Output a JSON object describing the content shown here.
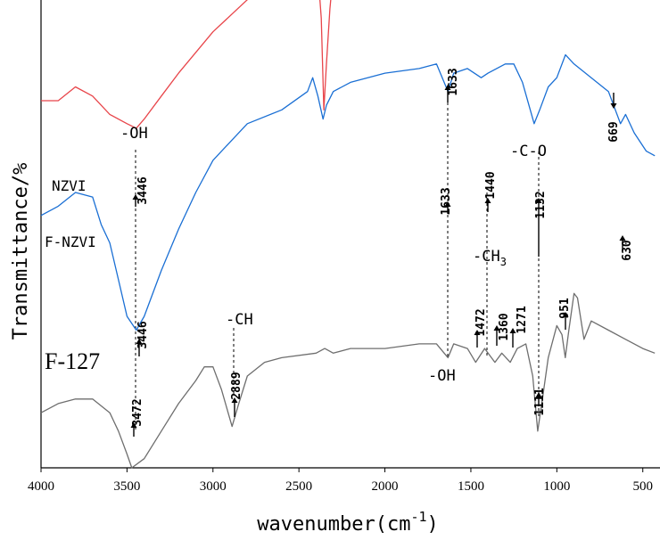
{
  "chart_data": {
    "type": "line",
    "xlabel": "wavenumber(cm",
    "xlabel_sup": "-1",
    "xlabel_end": ")",
    "ylabel": "Transmittance/%",
    "xlim": [
      4000,
      400
    ],
    "x_ticks": [
      4000,
      3500,
      3000,
      2500,
      2000,
      1500,
      1000,
      500
    ],
    "grid": false,
    "legend": "none",
    "series": [
      {
        "name": "NZVI",
        "color": "#e8454a",
        "offset": 0.78,
        "points": [
          [
            4000,
            0.02
          ],
          [
            3900,
            0.02
          ],
          [
            3800,
            0.05
          ],
          [
            3700,
            0.03
          ],
          [
            3600,
            -0.01
          ],
          [
            3500,
            -0.03
          ],
          [
            3446,
            -0.04
          ],
          [
            3400,
            -0.02
          ],
          [
            3300,
            0.03
          ],
          [
            3200,
            0.08
          ],
          [
            3000,
            0.17
          ],
          [
            2800,
            0.24
          ],
          [
            2600,
            0.28
          ],
          [
            2450,
            0.34
          ],
          [
            2420,
            0.42
          ],
          [
            2390,
            0.3
          ],
          [
            2370,
            0.2
          ],
          [
            2355,
            0.0
          ],
          [
            2340,
            0.1
          ],
          [
            2320,
            0.22
          ],
          [
            2300,
            0.3
          ],
          [
            2200,
            0.32
          ],
          [
            2000,
            0.36
          ],
          [
            1800,
            0.38
          ],
          [
            1700,
            0.4
          ],
          [
            1633,
            0.36
          ],
          [
            1600,
            0.39
          ],
          [
            1500,
            0.41
          ],
          [
            1400,
            0.44
          ],
          [
            1300,
            0.46
          ],
          [
            1200,
            0.5
          ],
          [
            1100,
            0.5
          ],
          [
            1000,
            0.55
          ],
          [
            950,
            0.6
          ],
          [
            920,
            0.65
          ],
          [
            900,
            0.67
          ],
          [
            850,
            0.65
          ],
          [
            800,
            0.62
          ],
          [
            700,
            0.6
          ],
          [
            669,
            0.5
          ],
          [
            640,
            0.6
          ],
          [
            600,
            0.63
          ],
          [
            500,
            0.64
          ],
          [
            430,
            0.63
          ]
        ]
      },
      {
        "name": "F-NZVI",
        "color": "#1a6fd4",
        "offset": 0.55,
        "points": [
          [
            4000,
            0.0
          ],
          [
            3900,
            0.02
          ],
          [
            3800,
            0.05
          ],
          [
            3700,
            0.04
          ],
          [
            3650,
            -0.02
          ],
          [
            3600,
            -0.06
          ],
          [
            3550,
            -0.14
          ],
          [
            3500,
            -0.22
          ],
          [
            3446,
            -0.25
          ],
          [
            3400,
            -0.22
          ],
          [
            3300,
            -0.12
          ],
          [
            3200,
            -0.03
          ],
          [
            3100,
            0.05
          ],
          [
            3000,
            0.12
          ],
          [
            2800,
            0.2
          ],
          [
            2600,
            0.23
          ],
          [
            2450,
            0.27
          ],
          [
            2420,
            0.3
          ],
          [
            2390,
            0.26
          ],
          [
            2360,
            0.21
          ],
          [
            2340,
            0.24
          ],
          [
            2300,
            0.27
          ],
          [
            2200,
            0.29
          ],
          [
            2000,
            0.31
          ],
          [
            1800,
            0.32
          ],
          [
            1700,
            0.33
          ],
          [
            1633,
            0.27
          ],
          [
            1600,
            0.31
          ],
          [
            1520,
            0.32
          ],
          [
            1480,
            0.31
          ],
          [
            1440,
            0.3
          ],
          [
            1400,
            0.31
          ],
          [
            1300,
            0.33
          ],
          [
            1250,
            0.33
          ],
          [
            1200,
            0.29
          ],
          [
            1132,
            0.2
          ],
          [
            1100,
            0.23
          ],
          [
            1050,
            0.28
          ],
          [
            1000,
            0.3
          ],
          [
            950,
            0.35
          ],
          [
            900,
            0.33
          ],
          [
            800,
            0.3
          ],
          [
            700,
            0.27
          ],
          [
            630,
            0.2
          ],
          [
            600,
            0.22
          ],
          [
            550,
            0.18
          ],
          [
            480,
            0.14
          ],
          [
            430,
            0.13
          ]
        ]
      },
      {
        "name": "F-127",
        "color": "#6e6e6e",
        "offset": 0.2,
        "points": [
          [
            4000,
            -0.08
          ],
          [
            3900,
            -0.06
          ],
          [
            3800,
            -0.05
          ],
          [
            3700,
            -0.05
          ],
          [
            3600,
            -0.08
          ],
          [
            3550,
            -0.12
          ],
          [
            3500,
            -0.17
          ],
          [
            3472,
            -0.2
          ],
          [
            3400,
            -0.18
          ],
          [
            3300,
            -0.12
          ],
          [
            3200,
            -0.06
          ],
          [
            3100,
            -0.01
          ],
          [
            3050,
            0.02
          ],
          [
            3000,
            0.02
          ],
          [
            2950,
            -0.03
          ],
          [
            2889,
            -0.11
          ],
          [
            2850,
            -0.06
          ],
          [
            2800,
            0.0
          ],
          [
            2700,
            0.03
          ],
          [
            2600,
            0.04
          ],
          [
            2400,
            0.05
          ],
          [
            2350,
            0.06
          ],
          [
            2300,
            0.05
          ],
          [
            2200,
            0.06
          ],
          [
            2000,
            0.06
          ],
          [
            1800,
            0.07
          ],
          [
            1700,
            0.07
          ],
          [
            1633,
            0.04
          ],
          [
            1600,
            0.07
          ],
          [
            1520,
            0.06
          ],
          [
            1472,
            0.03
          ],
          [
            1420,
            0.06
          ],
          [
            1360,
            0.03
          ],
          [
            1320,
            0.05
          ],
          [
            1271,
            0.03
          ],
          [
            1230,
            0.06
          ],
          [
            1180,
            0.07
          ],
          [
            1140,
            0.0
          ],
          [
            1111,
            -0.12
          ],
          [
            1080,
            -0.04
          ],
          [
            1050,
            0.04
          ],
          [
            1000,
            0.11
          ],
          [
            970,
            0.09
          ],
          [
            951,
            0.04
          ],
          [
            930,
            0.1
          ],
          [
            900,
            0.18
          ],
          [
            880,
            0.17
          ],
          [
            842,
            0.08
          ],
          [
            800,
            0.12
          ],
          [
            700,
            0.1
          ],
          [
            600,
            0.08
          ],
          [
            500,
            0.06
          ],
          [
            430,
            0.05
          ]
        ]
      }
    ],
    "series_labels": [
      "NZVI",
      "F-NZVI",
      "F-127"
    ],
    "peak_labels": [
      "3446",
      "1633",
      "669",
      "3446",
      "1633",
      "1440",
      "1132",
      "630",
      "3472",
      "2889",
      "1472",
      "1360",
      "1271",
      "1111",
      "951"
    ],
    "group_labels": [
      "-OH",
      "-C-O",
      "-CH",
      "-CH3",
      "-CH",
      "-OH"
    ]
  }
}
